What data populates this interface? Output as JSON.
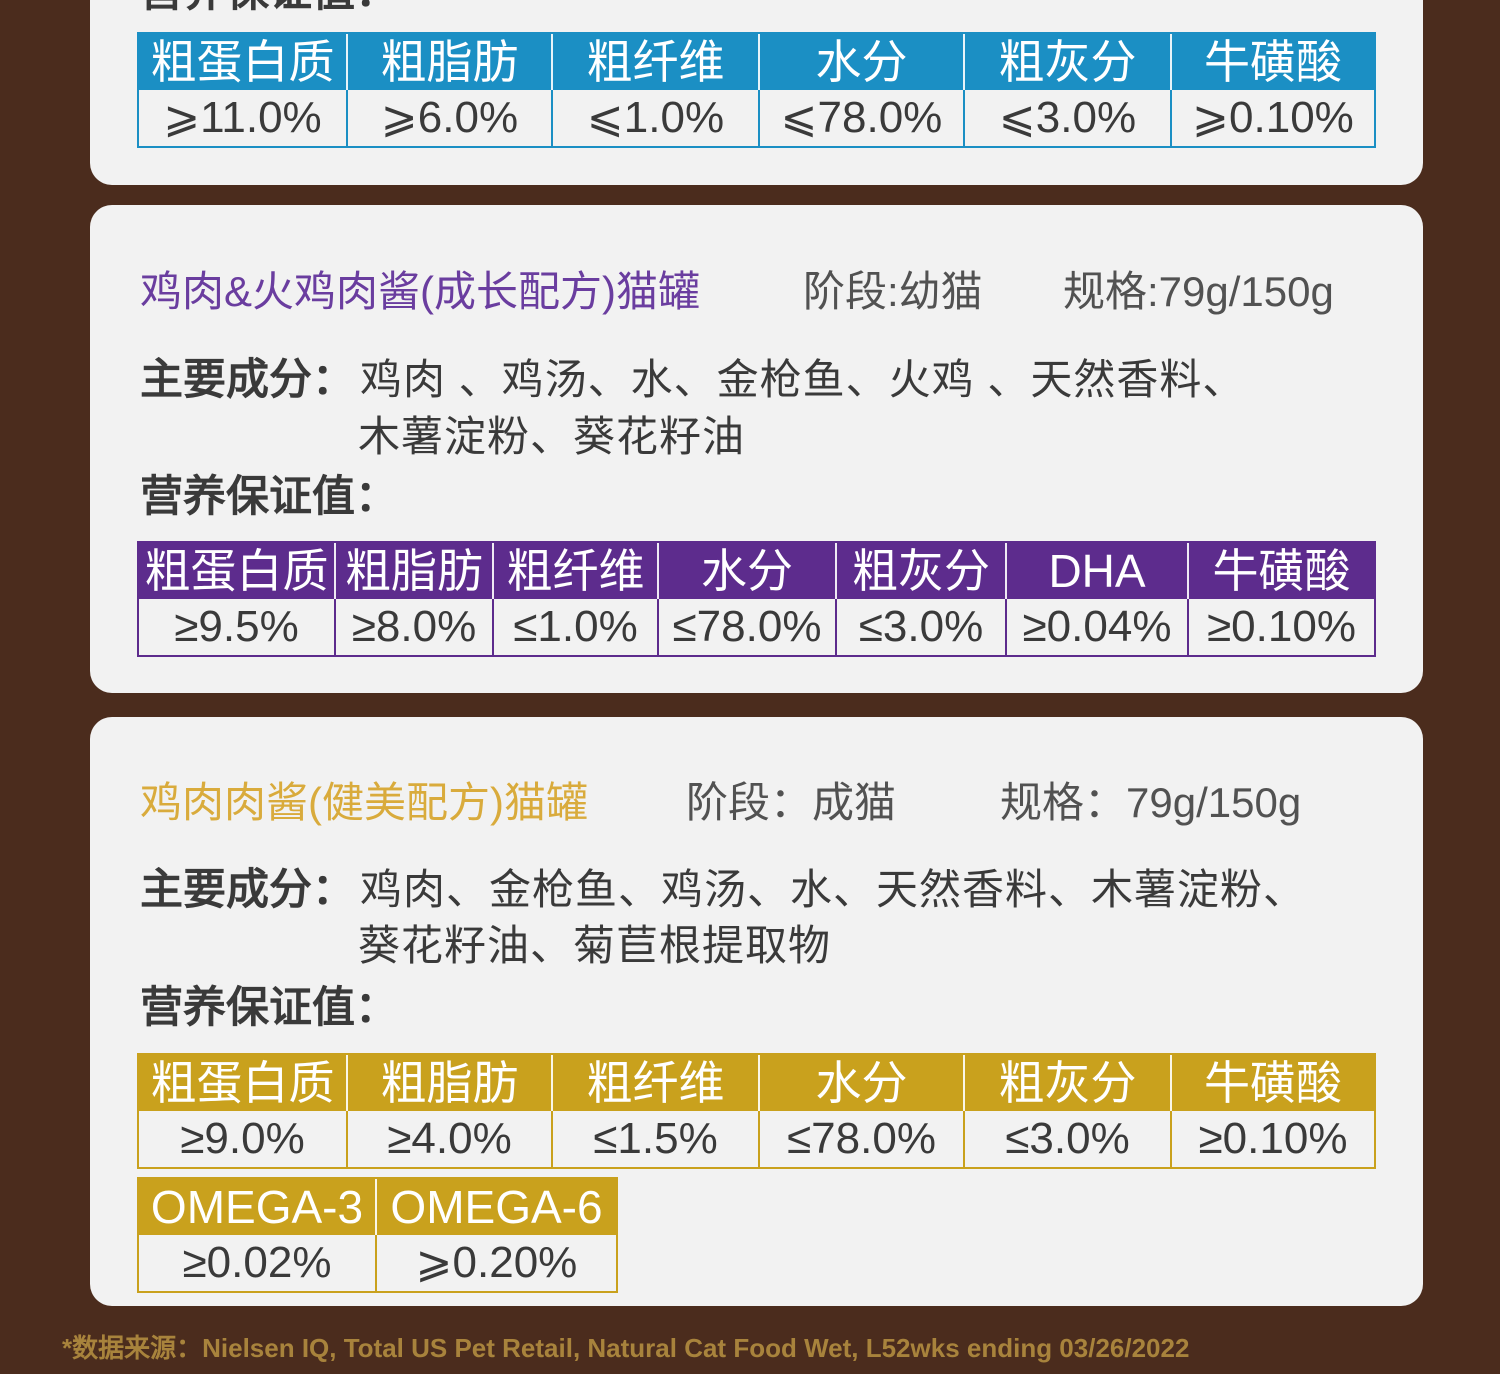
{
  "colors": {
    "background": "#4b2c1d",
    "card": "#f2f2f2",
    "blue": "#1b8fc4",
    "purple": "#5d2c8d",
    "purple_title": "#6a3d9f",
    "gold": "#c9a11d",
    "gold_title": "#d9ab3c",
    "footer": "#a8833c",
    "text": "#3a3a3a",
    "muted": "#525252"
  },
  "cards": [
    {
      "nutrition_label": "营养保证值：",
      "table": {
        "headers": [
          "粗蛋白质",
          "粗脂肪",
          "粗纤维",
          "水分",
          "粗灰分",
          "牛磺酸"
        ],
        "values": [
          "⩾11.0%",
          "⩾6.0%",
          "⩽1.0%",
          "⩽78.0%",
          "⩽3.0%",
          "⩾0.10%"
        ]
      }
    },
    {
      "title": "鸡肉&火鸡肉酱(成长配方)猫罐",
      "stage": "阶段:幼猫",
      "spec": "规格:79g/150g",
      "ingredients_label": "主要成分：",
      "ingredients": [
        "鸡肉 、鸡汤、水、金枪鱼、火鸡 、天然香料、",
        "木薯淀粉、葵花籽油"
      ],
      "nutrition_label": "营养保证值：",
      "table": {
        "headers": [
          "粗蛋白质",
          "粗脂肪",
          "粗纤维",
          "水分",
          "粗灰分",
          "DHA",
          "牛磺酸"
        ],
        "values": [
          "≥9.5%",
          "≥8.0%",
          "≤1.0%",
          "≤78.0%",
          "≤3.0%",
          "≥0.04%",
          "≥0.10%"
        ]
      }
    },
    {
      "title": "鸡肉肉酱(健美配方)猫罐",
      "stage": "阶段：成猫",
      "spec": "规格：79g/150g",
      "ingredients_label": "主要成分：",
      "ingredients": [
        "鸡肉、金枪鱼、鸡汤、水、天然香料、木薯淀粉、",
        "葵花籽油、菊苣根提取物"
      ],
      "nutrition_label": "营养保证值：",
      "table": {
        "headers": [
          "粗蛋白质",
          "粗脂肪",
          "粗纤维",
          "水分",
          "粗灰分",
          "牛磺酸"
        ],
        "values": [
          "≥9.0%",
          "≥4.0%",
          "≤1.5%",
          "≤78.0%",
          "≤3.0%",
          "≥0.10%"
        ]
      },
      "table_extra": {
        "headers": [
          "OMEGA-3",
          "OMEGA-6"
        ],
        "values": [
          "≥0.02%",
          "⩾0.20%"
        ]
      }
    }
  ],
  "footer": "*数据来源：Nielsen IQ, Total US Pet Retail, Natural Cat Food Wet, L52wks ending 03/26/2022"
}
